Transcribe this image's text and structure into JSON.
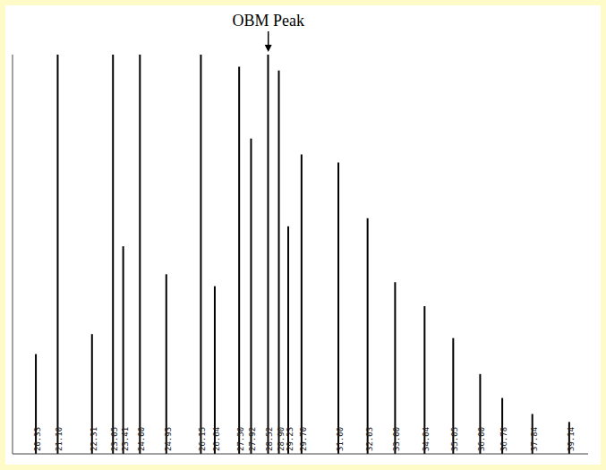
{
  "chart_data": {
    "type": "bar",
    "annotations": [
      {
        "text": "OBM Peak",
        "x": 28.52,
        "y": 100
      }
    ],
    "x": [
      20.33,
      21.1,
      22.31,
      23.05,
      23.41,
      24.0,
      24.93,
      26.15,
      26.64,
      27.5,
      27.92,
      28.52,
      28.9,
      29.23,
      29.7,
      31.0,
      32.03,
      33.0,
      34.04,
      35.05,
      36.0,
      36.78,
      37.84,
      39.14
    ],
    "x_labels": [
      "20.33",
      "21.10",
      "22.31",
      "23.05",
      "23.41",
      "24.00",
      "24.93",
      "26.15",
      "26.64",
      "27.50",
      "27.92",
      "28.52",
      "28.90",
      "29.23",
      "29.70",
      "31.00",
      "32.03",
      "33.00",
      "34.04",
      "35.05",
      "36.00",
      "36.78",
      "37.84",
      "39.14"
    ],
    "values": [
      25,
      100,
      30,
      100,
      52,
      100,
      45,
      100,
      42,
      97,
      79,
      100,
      96,
      57,
      75,
      73,
      59,
      43,
      37,
      29,
      20,
      14,
      10,
      8
    ],
    "xlim": [
      19.5,
      39.8
    ],
    "ylim": [
      0,
      100
    ],
    "color": "#000000",
    "tick_labels": false
  }
}
